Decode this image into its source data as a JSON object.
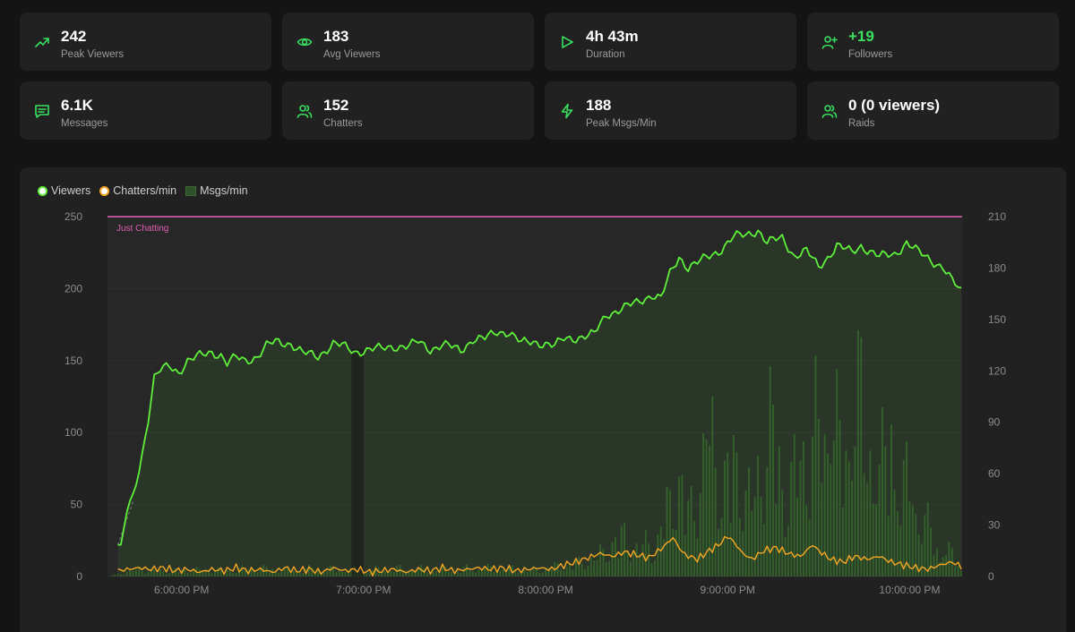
{
  "stats": [
    {
      "icon": "trending-up-icon",
      "value": "242",
      "label": "Peak Viewers",
      "green": false
    },
    {
      "icon": "eye-icon",
      "value": "183",
      "label": "Avg Viewers",
      "green": false
    },
    {
      "icon": "play-icon",
      "value": "4h 43m",
      "label": "Duration",
      "green": false
    },
    {
      "icon": "user-plus-icon",
      "value": "+19",
      "label": "Followers",
      "green": true
    },
    {
      "icon": "message-icon",
      "value": "6.1K",
      "label": "Messages",
      "green": false
    },
    {
      "icon": "users-icon",
      "value": "152",
      "label": "Chatters",
      "green": false
    },
    {
      "icon": "lightning-icon",
      "value": "188",
      "label": "Peak Msgs/Min",
      "green": false
    },
    {
      "icon": "users-icon",
      "value": "0 (0 viewers)",
      "label": "Raids",
      "green": false
    }
  ],
  "colors": {
    "viewers": "#5ef03a",
    "chatters": "#f5a623",
    "msgs": "#2f5028",
    "category_line": "#e060b0",
    "icon_green": "#39e060"
  },
  "chart_data": {
    "type": "line",
    "legend": [
      "Viewers",
      "Chatters/min",
      "Msgs/min"
    ],
    "legend_position": "top-left",
    "left_axis": {
      "min": 0,
      "max": 250,
      "ticks": [
        "0",
        "50",
        "100",
        "150",
        "200",
        "250"
      ]
    },
    "right_axis": {
      "min": 0,
      "max": 210,
      "ticks": [
        "0",
        "30",
        "60",
        "90",
        "120",
        "150",
        "180",
        "210"
      ]
    },
    "x_ticks": [
      "6:00:00 PM",
      "7:00:00 PM",
      "8:00:00 PM",
      "9:00:00 PM",
      "10:00:00 PM"
    ],
    "x_range_minutes": [
      -25,
      257
    ],
    "x_tick_minutes": [
      0,
      60,
      120,
      180,
      240
    ],
    "category_label": "Just Chatting",
    "category_value": 250,
    "viewer_points": [
      [
        -25,
        0
      ],
      [
        -21,
        22
      ],
      [
        -20,
        22
      ],
      [
        -18,
        45
      ],
      [
        -16,
        55
      ],
      [
        -13,
        85
      ],
      [
        -11,
        110
      ],
      [
        -9,
        138
      ],
      [
        -7,
        143
      ],
      [
        -4,
        146
      ],
      [
        -1,
        142
      ],
      [
        2,
        150
      ],
      [
        6,
        153
      ],
      [
        10,
        156
      ],
      [
        13,
        154
      ],
      [
        15,
        148
      ],
      [
        18,
        152
      ],
      [
        21,
        150
      ],
      [
        25,
        153
      ],
      [
        28,
        160
      ],
      [
        31,
        163
      ],
      [
        36,
        162
      ],
      [
        40,
        155
      ],
      [
        45,
        153
      ],
      [
        50,
        162
      ],
      [
        53,
        160
      ],
      [
        57,
        156
      ],
      [
        62,
        158
      ],
      [
        66,
        158
      ],
      [
        70,
        160
      ],
      [
        75,
        160
      ],
      [
        78,
        163
      ],
      [
        82,
        158
      ],
      [
        86,
        161
      ],
      [
        88,
        160
      ],
      [
        92,
        157
      ],
      [
        96,
        165
      ],
      [
        100,
        165
      ],
      [
        104,
        170
      ],
      [
        108,
        170
      ],
      [
        112,
        162
      ],
      [
        116,
        163
      ],
      [
        120,
        162
      ],
      [
        123,
        160
      ],
      [
        126,
        165
      ],
      [
        130,
        166
      ],
      [
        136,
        168
      ],
      [
        140,
        182
      ],
      [
        145,
        186
      ],
      [
        150,
        190
      ],
      [
        155,
        196
      ],
      [
        158,
        193
      ],
      [
        161,
        210
      ],
      [
        164,
        222
      ],
      [
        167,
        215
      ],
      [
        172,
        220
      ],
      [
        177,
        226
      ],
      [
        182,
        236
      ],
      [
        186,
        237
      ],
      [
        190,
        241
      ],
      [
        193,
        232
      ],
      [
        198,
        235
      ],
      [
        202,
        223
      ],
      [
        206,
        226
      ],
      [
        210,
        215
      ],
      [
        213,
        222
      ],
      [
        216,
        230
      ],
      [
        221,
        225
      ],
      [
        224,
        230
      ],
      [
        230,
        222
      ],
      [
        235,
        224
      ],
      [
        239,
        232
      ],
      [
        243,
        225
      ],
      [
        247,
        220
      ],
      [
        251,
        215
      ],
      [
        254,
        205
      ],
      [
        257,
        198
      ]
    ],
    "chatter_points": [
      [
        -25,
        0
      ],
      [
        -21,
        4
      ],
      [
        -18,
        5
      ],
      [
        -14,
        6
      ],
      [
        -10,
        5
      ],
      [
        -6,
        6
      ],
      [
        -2,
        4
      ],
      [
        2,
        5
      ],
      [
        6,
        3
      ],
      [
        10,
        5
      ],
      [
        14,
        4
      ],
      [
        18,
        6
      ],
      [
        22,
        4
      ],
      [
        26,
        5
      ],
      [
        30,
        3
      ],
      [
        34,
        6
      ],
      [
        38,
        4
      ],
      [
        42,
        5
      ],
      [
        46,
        3
      ],
      [
        50,
        6
      ],
      [
        54,
        4
      ],
      [
        58,
        5
      ],
      [
        62,
        3
      ],
      [
        66,
        4
      ],
      [
        70,
        5
      ],
      [
        74,
        3
      ],
      [
        78,
        5
      ],
      [
        82,
        4
      ],
      [
        86,
        6
      ],
      [
        90,
        4
      ],
      [
        94,
        5
      ],
      [
        98,
        6
      ],
      [
        102,
        5
      ],
      [
        106,
        6
      ],
      [
        110,
        4
      ],
      [
        114,
        5
      ],
      [
        118,
        6
      ],
      [
        122,
        5
      ],
      [
        126,
        8
      ],
      [
        130,
        10
      ],
      [
        134,
        13
      ],
      [
        138,
        16
      ],
      [
        142,
        14
      ],
      [
        146,
        17
      ],
      [
        150,
        15
      ],
      [
        154,
        13
      ],
      [
        158,
        19
      ],
      [
        162,
        27
      ],
      [
        164,
        20
      ],
      [
        166,
        15
      ],
      [
        170,
        12
      ],
      [
        174,
        18
      ],
      [
        177,
        22
      ],
      [
        180,
        28
      ],
      [
        182,
        24
      ],
      [
        185,
        16
      ],
      [
        188,
        12
      ],
      [
        192,
        18
      ],
      [
        196,
        20
      ],
      [
        200,
        16
      ],
      [
        204,
        14
      ],
      [
        208,
        22
      ],
      [
        210,
        18
      ],
      [
        214,
        12
      ],
      [
        218,
        10
      ],
      [
        222,
        14
      ],
      [
        226,
        12
      ],
      [
        230,
        14
      ],
      [
        234,
        10
      ],
      [
        238,
        8
      ],
      [
        242,
        6
      ],
      [
        246,
        5
      ],
      [
        250,
        8
      ],
      [
        254,
        10
      ],
      [
        257,
        7
      ]
    ],
    "msg_bars": [
      [
        -25,
        0
      ],
      [
        -15,
        5
      ],
      [
        -5,
        4
      ],
      [
        5,
        5
      ],
      [
        15,
        5
      ],
      [
        25,
        6
      ],
      [
        35,
        5
      ],
      [
        45,
        6
      ],
      [
        55,
        5
      ],
      [
        65,
        5
      ],
      [
        75,
        6
      ],
      [
        85,
        5
      ],
      [
        95,
        6
      ],
      [
        105,
        6
      ],
      [
        115,
        5
      ],
      [
        125,
        8
      ],
      [
        131,
        10
      ],
      [
        137,
        14
      ],
      [
        142,
        25
      ],
      [
        146,
        30
      ],
      [
        150,
        20
      ],
      [
        154,
        26
      ],
      [
        156,
        18
      ],
      [
        160,
        50
      ],
      [
        162,
        62
      ],
      [
        164,
        70
      ],
      [
        166,
        48
      ],
      [
        169,
        55
      ],
      [
        172,
        80
      ],
      [
        174,
        122
      ],
      [
        176,
        85
      ],
      [
        178,
        66
      ],
      [
        180,
        72
      ],
      [
        182,
        90
      ],
      [
        186,
        60
      ],
      [
        188,
        55
      ],
      [
        190,
        75
      ],
      [
        192,
        84
      ],
      [
        194,
        112
      ],
      [
        196,
        98
      ],
      [
        198,
        70
      ],
      [
        200,
        62
      ],
      [
        203,
        80
      ],
      [
        205,
        96
      ],
      [
        207,
        95
      ],
      [
        209,
        110
      ],
      [
        212,
        98
      ],
      [
        214,
        160
      ],
      [
        217,
        84
      ],
      [
        220,
        100
      ],
      [
        222,
        188
      ],
      [
        225,
        80
      ],
      [
        228,
        108
      ],
      [
        230,
        90
      ],
      [
        232,
        75
      ],
      [
        234,
        120
      ],
      [
        237,
        60
      ],
      [
        240,
        70
      ],
      [
        243,
        55
      ],
      [
        246,
        35
      ],
      [
        249,
        25
      ],
      [
        252,
        20
      ],
      [
        255,
        12
      ],
      [
        257,
        8
      ]
    ]
  }
}
